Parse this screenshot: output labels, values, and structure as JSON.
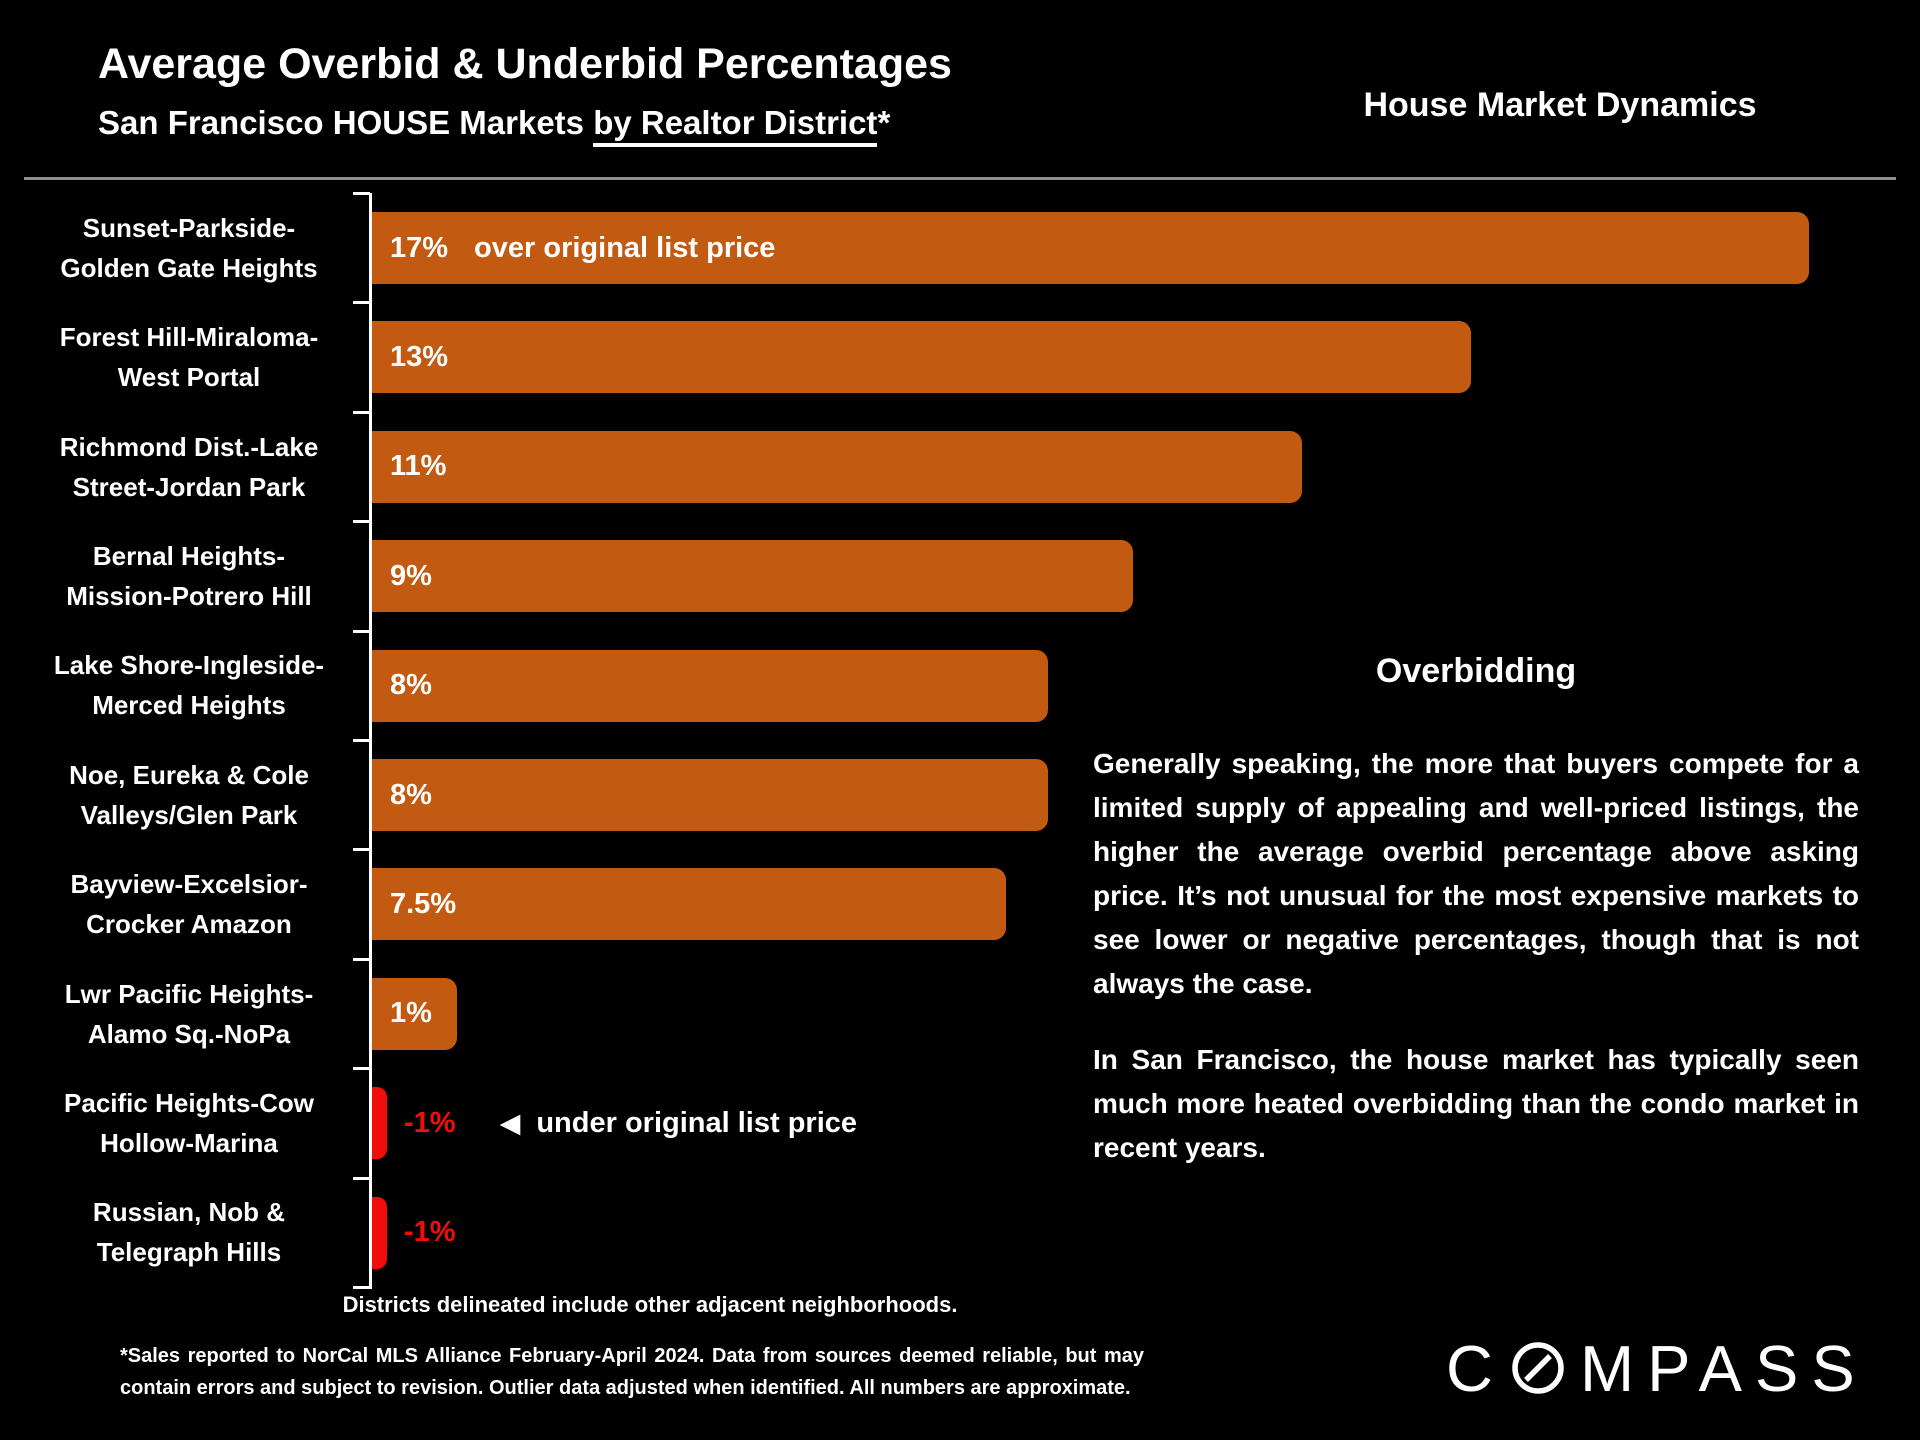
{
  "header": {
    "title": "Average Overbid & Underbid Percentages",
    "subtitle_prefix": "San Francisco HOUSE Markets ",
    "subtitle_underlined": "by Realtor District",
    "subtitle_suffix": "*",
    "right_heading": "House Market Dynamics"
  },
  "chart_data": {
    "type": "bar",
    "orientation": "horizontal",
    "unit": "percent over/under original list price",
    "categories": [
      "Sunset-Parkside-\nGolden Gate Heights",
      "Forest Hill-Miraloma-\nWest Portal",
      "Richmond Dist.-Lake\nStreet-Jordan Park",
      "Bernal Heights-\nMission-Potrero Hill",
      "Lake Shore-Ingleside-\nMerced Heights",
      "Noe, Eureka & Cole\nValleys/Glen Park",
      "Bayview-Excelsior-\nCrocker Amazon",
      "Lwr Pacific Heights-\nAlamo Sq.-NoPa",
      "Pacific Heights-Cow\nHollow-Marina",
      "Russian, Nob &\nTelegraph Hills"
    ],
    "values": [
      17,
      13,
      11,
      9,
      8,
      8,
      7.5,
      1,
      -1,
      -1
    ],
    "value_labels": [
      "17%",
      "13%",
      "11%",
      "9%",
      "8%",
      "8%",
      "7.5%",
      "1%",
      "-1%",
      "-1%"
    ],
    "first_bar_annotation": "over original list price",
    "under_annotation": {
      "arrow": "◀",
      "text": "under original list price",
      "row_index": 8
    },
    "colors": {
      "positive_bar": "#C35A11",
      "negative_bar": "#F20D0D",
      "negative_label": "#F20D0D",
      "axis": "#FFFFFF",
      "background": "#000000",
      "text": "#FFFFFF"
    },
    "xlim": [
      0,
      17.5
    ],
    "grid": false,
    "legend": false
  },
  "info_panel": {
    "heading": "Overbidding",
    "paragraphs": [
      "Generally speaking, the more that buyers compete for a limited supply of appealing and well-priced listings, the higher the average overbid percentage above asking price. It’s not unusual for the most expensive markets to see lower or negative percentages, though that is not always the case.",
      "In San Francisco, the house market has typically seen much more heated overbidding than the condo market in recent years."
    ]
  },
  "footer": {
    "districts_note": "Districts delineated include other adjacent neighborhoods.",
    "footnote_lines": [
      "*Sales reported to NorCal MLS Alliance February-April 2024. Data from sources deemed reliable, but may",
      "contain errors and subject to revision. Outlier data adjusted when identified. All numbers are approximate."
    ],
    "logo_prefix": "C",
    "logo_suffix": "MPASS"
  }
}
